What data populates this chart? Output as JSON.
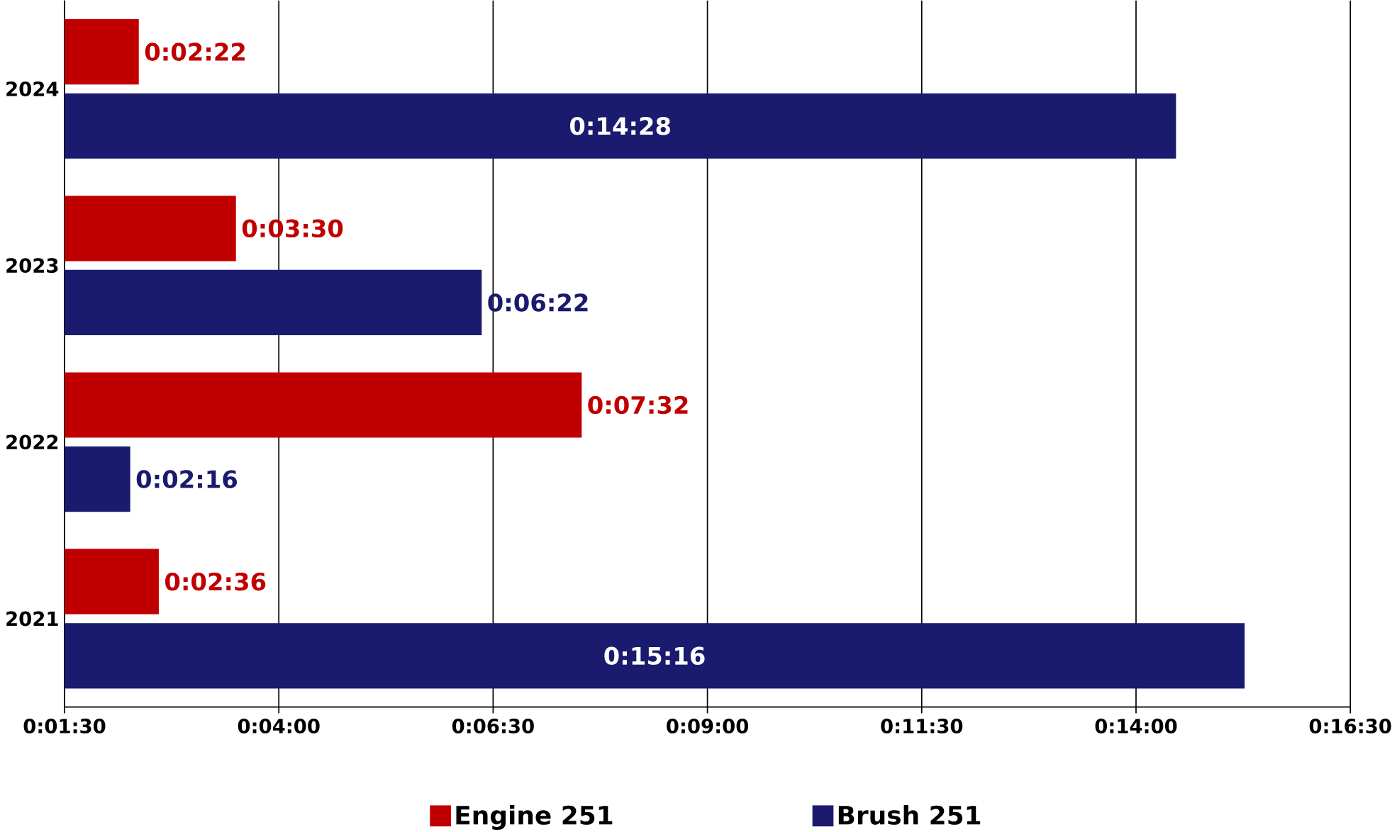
{
  "chart_data": {
    "type": "bar",
    "orientation": "horizontal",
    "categories": [
      "2024",
      "2023",
      "2022",
      "2021"
    ],
    "series": [
      {
        "name": "Engine 251",
        "color": "#c00000",
        "values": [
          142,
          210,
          452,
          156
        ],
        "value_labels": [
          "0:02:22",
          "0:03:30",
          "0:07:32",
          "0:02:36"
        ]
      },
      {
        "name": "Brush 251",
        "color": "#1a1a6e",
        "values": [
          868,
          382,
          136,
          916
        ],
        "value_labels": [
          "0:14:28",
          "0:06:22",
          "0:02:16",
          "0:15:16"
        ]
      }
    ],
    "xlim": [
      90,
      990
    ],
    "xticks": [
      {
        "value": 90,
        "label": "0:01:30"
      },
      {
        "value": 240,
        "label": "0:04:00"
      },
      {
        "value": 390,
        "label": "0:06:30"
      },
      {
        "value": 540,
        "label": "0:09:00"
      },
      {
        "value": 690,
        "label": "0:11:30"
      },
      {
        "value": 840,
        "label": "0:14:00"
      },
      {
        "value": 990,
        "label": "0:16:30"
      }
    ],
    "grid": "x",
    "legend": "bottom"
  }
}
